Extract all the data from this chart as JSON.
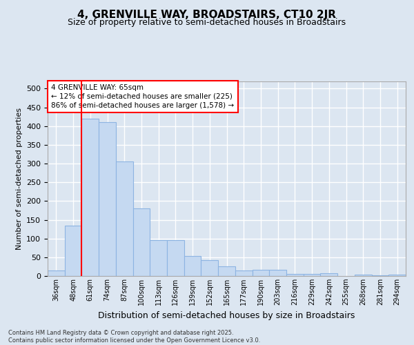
{
  "title": "4, GRENVILLE WAY, BROADSTAIRS, CT10 2JR",
  "subtitle": "Size of property relative to semi-detached houses in Broadstairs",
  "xlabel": "Distribution of semi-detached houses by size in Broadstairs",
  "ylabel": "Number of semi-detached properties",
  "categories": [
    "36sqm",
    "48sqm",
    "61sqm",
    "74sqm",
    "87sqm",
    "100sqm",
    "113sqm",
    "126sqm",
    "139sqm",
    "152sqm",
    "165sqm",
    "177sqm",
    "190sqm",
    "203sqm",
    "216sqm",
    "229sqm",
    "242sqm",
    "255sqm",
    "268sqm",
    "281sqm",
    "294sqm"
  ],
  "values": [
    14,
    135,
    420,
    410,
    305,
    180,
    95,
    95,
    53,
    42,
    25,
    14,
    17,
    17,
    5,
    6,
    7,
    0,
    4,
    1,
    3
  ],
  "bar_color": "#c5d9f1",
  "bar_edge_color": "#8db4e2",
  "background_color": "#dce6f1",
  "plot_bg_color": "#dce6f1",
  "grid_color": "#ffffff",
  "annotation_text": "4 GRENVILLE WAY: 65sqm\n← 12% of semi-detached houses are smaller (225)\n86% of semi-detached houses are larger (1,578) →",
  "annotation_box_color": "#ffffff",
  "annotation_border_color": "#ff0000",
  "ylim": [
    0,
    520
  ],
  "yticks": [
    0,
    50,
    100,
    150,
    200,
    250,
    300,
    350,
    400,
    450,
    500
  ],
  "footer": "Contains HM Land Registry data © Crown copyright and database right 2025.\nContains public sector information licensed under the Open Government Licence v3.0."
}
